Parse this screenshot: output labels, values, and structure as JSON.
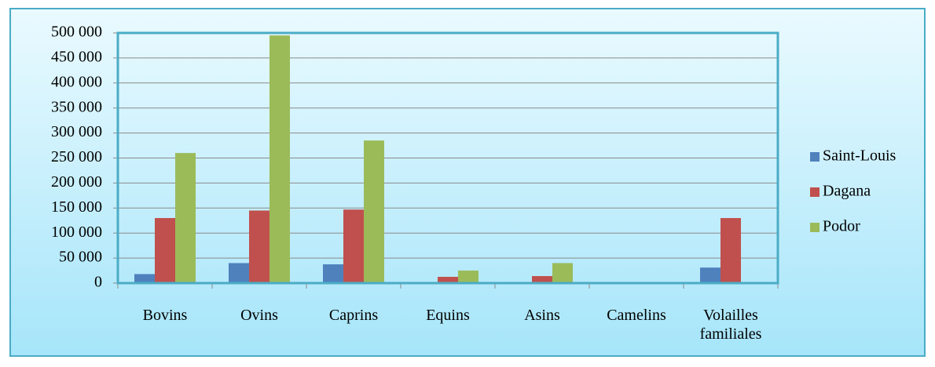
{
  "chart_data": {
    "type": "bar",
    "categories": [
      "Bovins",
      "Ovins",
      "Caprins",
      "Equins",
      "Asins",
      "Camelins",
      "Volailles familiales"
    ],
    "series": [
      {
        "name": "Saint-Louis",
        "color": "#4f81bd",
        "values": [
          18000,
          40000,
          37500,
          500,
          500,
          0,
          31000
        ]
      },
      {
        "name": "Dagana",
        "color": "#c0504d",
        "values": [
          130000,
          145000,
          147000,
          12500,
          14000,
          0,
          130000
        ]
      },
      {
        "name": "Podor",
        "color": "#9bbb59",
        "values": [
          260000,
          495000,
          285000,
          25000,
          40000,
          0,
          0
        ]
      }
    ],
    "ylim": [
      0,
      500000
    ],
    "yticks": [
      0,
      {
        "value": 50000,
        "label": "50 000"
      },
      {
        "value": 100000,
        "label": "100 000"
      },
      {
        "value": 150000,
        "label": "150 000"
      },
      {
        "value": 200000,
        "label": "200 000"
      },
      {
        "value": 250000,
        "label": "250 000"
      },
      {
        "value": 300000,
        "label": "300 000"
      },
      {
        "value": 350000,
        "label": "350 000"
      },
      {
        "value": 400000,
        "label": "400 000"
      },
      {
        "value": 450000,
        "label": "450 000"
      },
      {
        "value": 500000,
        "label": "500 000"
      }
    ],
    "grid": true,
    "legend": "right"
  }
}
